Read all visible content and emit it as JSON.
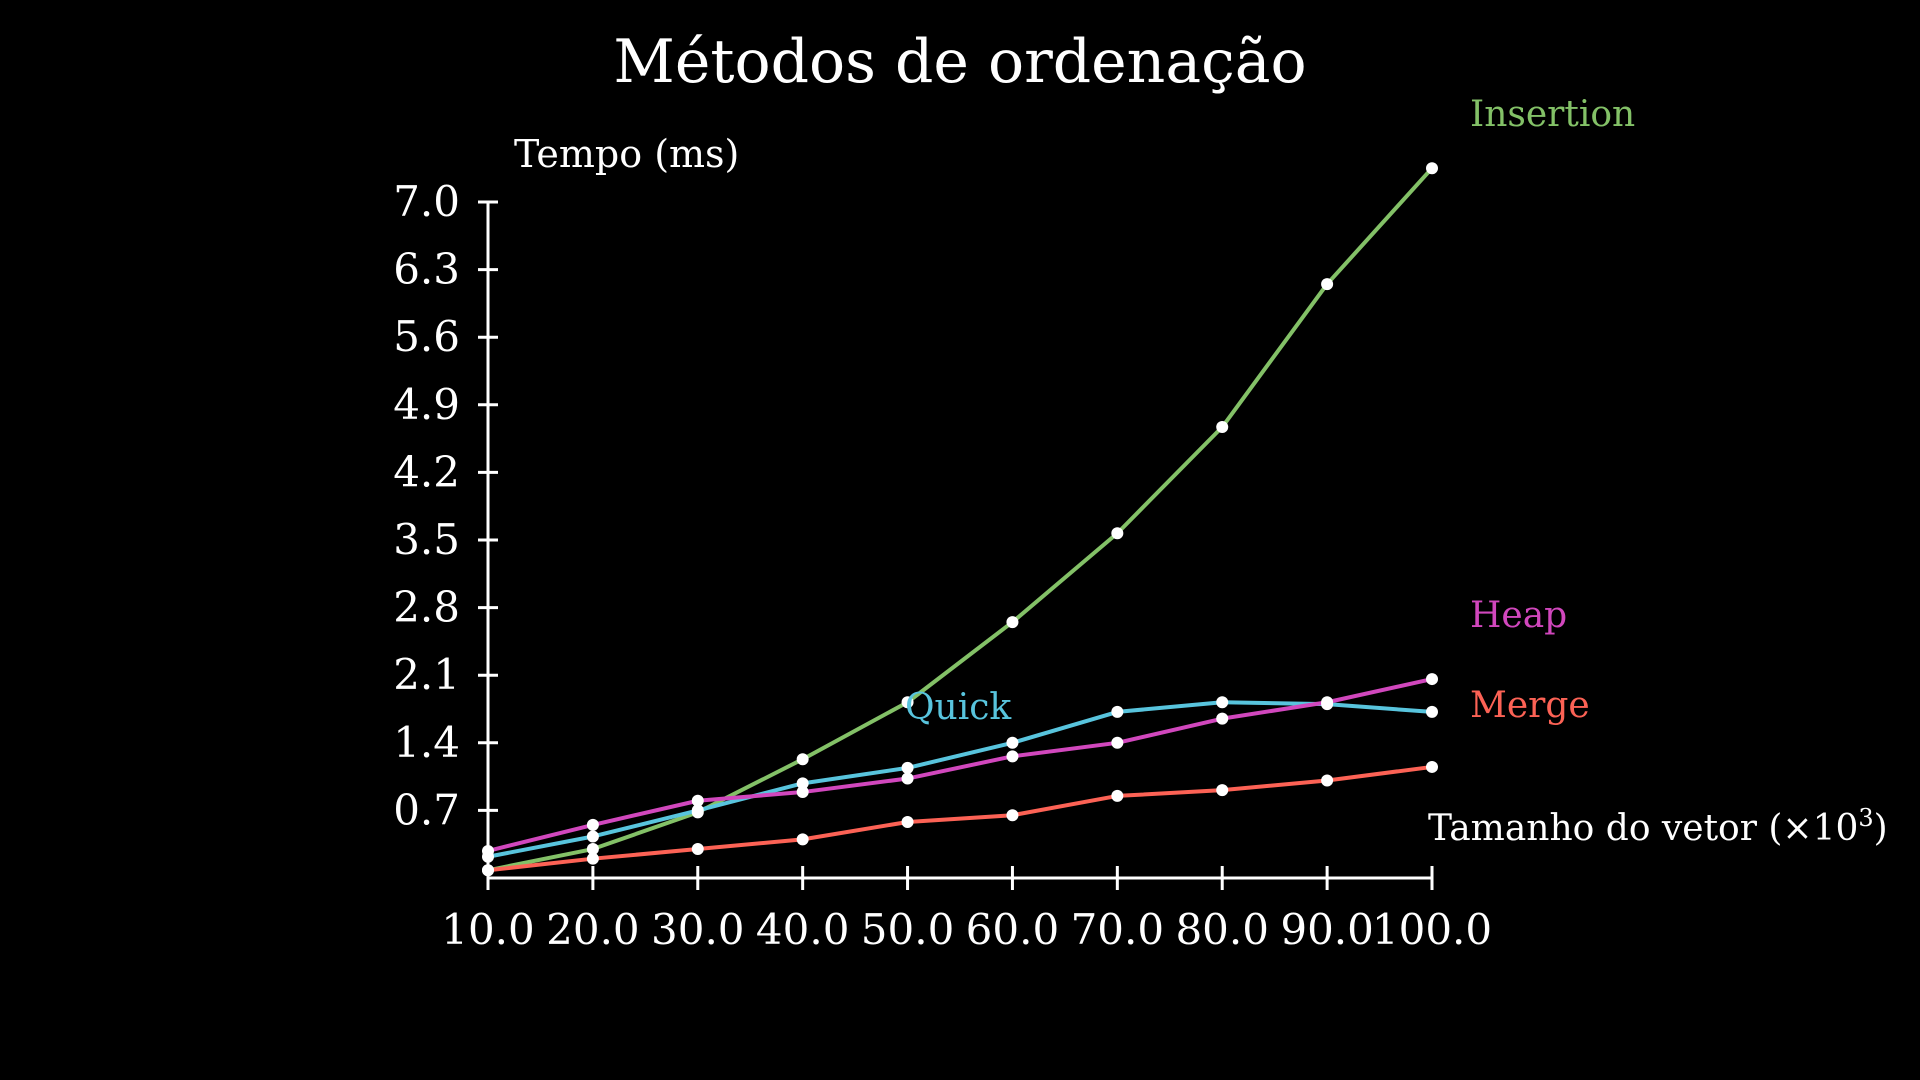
{
  "chart_data": {
    "type": "line",
    "title": "Métodos de ordenação",
    "ylabel": "Tempo (ms)",
    "xlabel": "Tamanho do vetor (×10",
    "xlabel_superscript": "3",
    "xlabel_suffix": ")",
    "x": [
      10,
      20,
      30,
      40,
      50,
      60,
      70,
      80,
      90,
      100
    ],
    "x_tick_labels": [
      "10.0",
      "20.0",
      "30.0",
      "40.0",
      "50.0",
      "60.0",
      "70.0",
      "80.0",
      "90.0",
      "100.0"
    ],
    "y_ticks": [
      0.7,
      1.4,
      2.1,
      2.8,
      3.5,
      4.2,
      4.9,
      5.6,
      6.3,
      7.0
    ],
    "y_tick_labels": [
      "0.7",
      "1.4",
      "2.1",
      "2.8",
      "3.5",
      "4.2",
      "4.9",
      "5.6",
      "6.3",
      "7.0"
    ],
    "xlim": [
      10,
      100
    ],
    "ylim": [
      0,
      7.0
    ],
    "grid": false,
    "legend": "inline labels at series ends",
    "point_color": "#ffffff",
    "axis_color": "#ffffff",
    "series": [
      {
        "name": "Insertion",
        "color": "#83c167",
        "values": [
          0.08,
          0.3,
          0.68,
          1.23,
          1.82,
          2.65,
          3.57,
          4.67,
          6.15,
          7.35
        ]
      },
      {
        "name": "Quick",
        "color": "#58c4dd",
        "values": [
          0.22,
          0.43,
          0.7,
          0.98,
          1.14,
          1.4,
          1.72,
          1.82,
          1.8,
          1.72
        ]
      },
      {
        "name": "Heap",
        "color": "#d147bd",
        "values": [
          0.28,
          0.55,
          0.8,
          0.89,
          1.03,
          1.26,
          1.4,
          1.65,
          1.82,
          2.06
        ]
      },
      {
        "name": "Merge",
        "color": "#fc6255",
        "values": [
          0.08,
          0.2,
          0.3,
          0.4,
          0.58,
          0.65,
          0.85,
          0.91,
          1.01,
          1.15
        ]
      }
    ]
  }
}
